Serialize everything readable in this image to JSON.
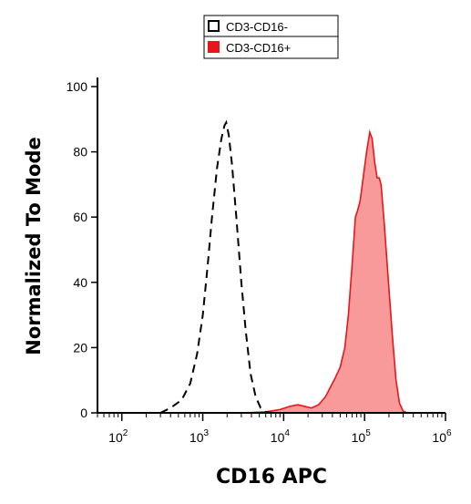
{
  "chart_data": {
    "type": "area",
    "xlabel": "CD16 APC",
    "ylabel": "Normalized To Mode",
    "xscale": "log",
    "xlim": [
      50,
      1000000
    ],
    "ylim": [
      0,
      100
    ],
    "xticks": [
      {
        "value": 100,
        "base": "10",
        "exp": "2"
      },
      {
        "value": 1000,
        "base": "10",
        "exp": "3"
      },
      {
        "value": 10000,
        "base": "10",
        "exp": "4"
      },
      {
        "value": 100000,
        "base": "10",
        "exp": "5"
      },
      {
        "value": 1000000,
        "base": "10",
        "exp": "6"
      }
    ],
    "yticks": [
      0,
      20,
      40,
      60,
      80,
      100
    ],
    "grid": false,
    "legend": {
      "placement": "top-center"
    },
    "series": [
      {
        "name": "CD3-CD16-",
        "style": "dashed",
        "color": "#000000",
        "fill": "none",
        "points": [
          [
            300,
            0
          ],
          [
            400,
            1.5
          ],
          [
            550,
            4
          ],
          [
            700,
            9
          ],
          [
            850,
            18
          ],
          [
            1000,
            30
          ],
          [
            1150,
            45
          ],
          [
            1300,
            60
          ],
          [
            1500,
            75
          ],
          [
            1700,
            84
          ],
          [
            1850,
            88
          ],
          [
            1950,
            89
          ],
          [
            2100,
            85
          ],
          [
            2300,
            76
          ],
          [
            2600,
            60
          ],
          [
            3000,
            40
          ],
          [
            3400,
            25
          ],
          [
            3900,
            12
          ],
          [
            4500,
            5
          ],
          [
            5200,
            1.5
          ],
          [
            6000,
            0.3
          ],
          [
            7000,
            0
          ]
        ]
      },
      {
        "name": "CD3-CD16+",
        "style": "solid",
        "color": "#e8161b",
        "fill": "#f99a9a",
        "points": [
          [
            3000,
            0
          ],
          [
            6000,
            0.3
          ],
          [
            9000,
            1
          ],
          [
            12000,
            2
          ],
          [
            15000,
            2.5
          ],
          [
            18000,
            2
          ],
          [
            22000,
            1.5
          ],
          [
            27000,
            2.5
          ],
          [
            33000,
            5
          ],
          [
            38000,
            8
          ],
          [
            43000,
            10.5
          ],
          [
            50000,
            14
          ],
          [
            57000,
            20
          ],
          [
            63000,
            30
          ],
          [
            70000,
            45
          ],
          [
            77000,
            60
          ],
          [
            82000,
            62
          ],
          [
            88000,
            65
          ],
          [
            96000,
            72
          ],
          [
            106000,
            80
          ],
          [
            116000,
            86
          ],
          [
            124000,
            84
          ],
          [
            133000,
            77
          ],
          [
            143000,
            72
          ],
          [
            152000,
            72
          ],
          [
            160000,
            70
          ],
          [
            175000,
            58
          ],
          [
            195000,
            42
          ],
          [
            220000,
            24
          ],
          [
            245000,
            10
          ],
          [
            270000,
            3
          ],
          [
            300000,
            0.5
          ],
          [
            340000,
            0
          ]
        ]
      }
    ]
  }
}
